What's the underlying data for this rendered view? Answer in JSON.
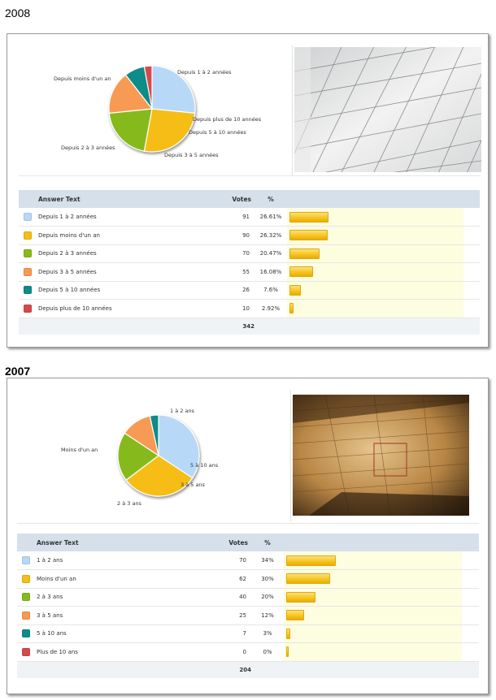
{
  "sections": [
    {
      "year": "2008",
      "table": {
        "headers": {
          "answer": "Answer Text",
          "votes": "Votes",
          "pct": "%"
        },
        "rows": [
          {
            "label": "Depuis 1 à 2 années",
            "votes": "91",
            "pct": "26.61%",
            "color": "#b8d8f8"
          },
          {
            "label": "Depuis moins d'un an",
            "votes": "90",
            "pct": "26.32%",
            "color": "#f6bd14"
          },
          {
            "label": "Depuis 2 à 3 années",
            "votes": "70",
            "pct": "20.47%",
            "color": "#86ba1c"
          },
          {
            "label": "Depuis 3 à 5 années",
            "votes": "55",
            "pct": "16.08%",
            "color": "#f79a52"
          },
          {
            "label": "Depuis 5 à 10 années",
            "votes": "26",
            "pct": "7.6%",
            "color": "#0f8c88"
          },
          {
            "label": "Depuis plus de 10 années",
            "votes": "10",
            "pct": "2.92%",
            "color": "#d6494b"
          }
        ],
        "total": "342"
      }
    },
    {
      "year": "2007",
      "table": {
        "headers": {
          "answer": "Answer Text",
          "votes": "Votes",
          "pct": "%"
        },
        "rows": [
          {
            "label": "1 à 2 ans",
            "votes": "70",
            "pct": "34%",
            "color": "#b8d8f8"
          },
          {
            "label": "Moins d'un an",
            "votes": "62",
            "pct": "30%",
            "color": "#f6bd14"
          },
          {
            "label": "2 à 3 ans",
            "votes": "40",
            "pct": "20%",
            "color": "#86ba1c"
          },
          {
            "label": "3 à 5 ans",
            "votes": "25",
            "pct": "12%",
            "color": "#f79a52"
          },
          {
            "label": "5 à 10 ans",
            "votes": "7",
            "pct": "3%",
            "color": "#0f8c88"
          },
          {
            "label": "Plus de 10 ans",
            "votes": "0",
            "pct": "0%",
            "color": "#d6494b"
          }
        ],
        "total": "204"
      }
    }
  ],
  "chart_data": [
    {
      "type": "pie",
      "categories": [
        "Depuis 1 à 2 années",
        "Depuis moins d'un an",
        "Depuis 2 à 3 années",
        "Depuis 3 à 5 années",
        "Depuis 5 à 10 années",
        "Depuis plus de 10 années"
      ],
      "values": [
        91,
        90,
        70,
        55,
        26,
        10
      ],
      "percentages": [
        26.61,
        26.32,
        20.47,
        16.08,
        7.6,
        2.92
      ],
      "colors": [
        "#b8d8f8",
        "#f6bd14",
        "#86ba1c",
        "#f79a52",
        "#0f8c88",
        "#d6494b"
      ],
      "total": 342
    },
    {
      "type": "pie",
      "categories": [
        "1 à 2 ans",
        "Moins d'un an",
        "2 à 3 ans",
        "3 à 5 ans",
        "5 à 10 ans",
        "Plus de 10 ans"
      ],
      "values": [
        70,
        62,
        40,
        25,
        7,
        0
      ],
      "percentages": [
        34,
        30,
        20,
        12,
        3,
        0
      ],
      "colors": [
        "#b8d8f8",
        "#f6bd14",
        "#86ba1c",
        "#f79a52",
        "#0f8c88",
        "#d6494b"
      ],
      "total": 204
    }
  ]
}
